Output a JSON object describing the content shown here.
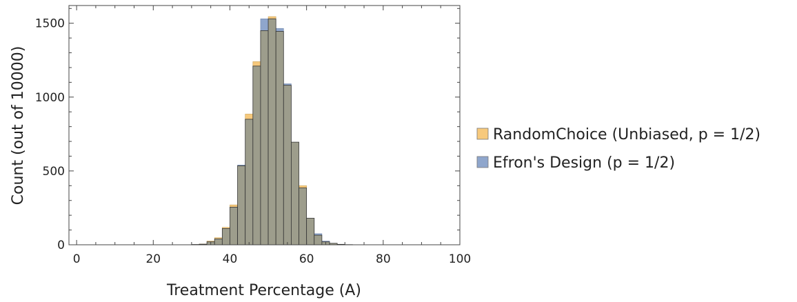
{
  "chart_data": {
    "type": "bar",
    "title": "",
    "xlabel": "Treatment Percentage (A)",
    "ylabel": "Count (out of 10000)",
    "xlim": [
      -2,
      100
    ],
    "ylim": [
      0,
      1620
    ],
    "bin_width": 2,
    "x_ticks": [
      0,
      20,
      40,
      60,
      80,
      100
    ],
    "y_ticks": [
      0,
      500,
      1000,
      1500
    ],
    "x_tick_labels": [
      "0",
      "20",
      "40",
      "60",
      "80",
      "100"
    ],
    "y_tick_labels": [
      "0",
      "500",
      "1000",
      "1500"
    ],
    "legend_position": "right",
    "grid": false,
    "bin_starts": [
      30,
      32,
      34,
      36,
      38,
      40,
      42,
      44,
      46,
      48,
      50,
      52,
      54,
      56,
      58,
      60,
      62,
      64,
      66,
      68,
      70
    ],
    "series": [
      {
        "name": "RandomChoice (Unbiased, p = 1/2)",
        "color": "#f7c97c",
        "values": [
          2,
          5,
          25,
          48,
          118,
          270,
          535,
          885,
          1240,
          1450,
          1545,
          1445,
          1080,
          695,
          400,
          180,
          65,
          20,
          10,
          3,
          1
        ]
      },
      {
        "name": "Efron's Design (p = 1/2)",
        "color": "#8fa6cc",
        "values": [
          2,
          4,
          20,
          40,
          110,
          255,
          540,
          850,
          1210,
          1530,
          1530,
          1465,
          1090,
          695,
          385,
          180,
          75,
          25,
          10,
          3,
          1
        ]
      }
    ]
  }
}
